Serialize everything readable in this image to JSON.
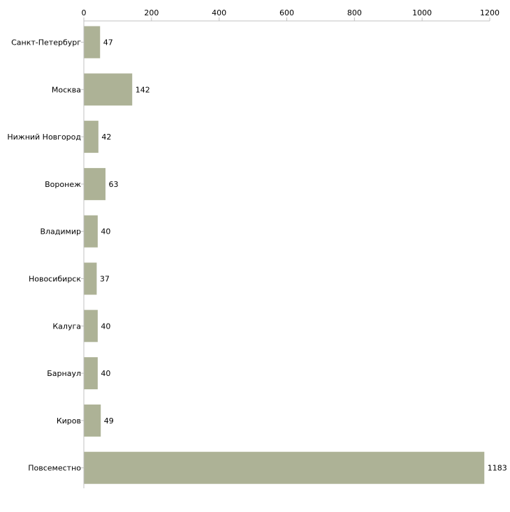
{
  "colors": {
    "bar": "#adb296",
    "axis": "#c0c0c0"
  },
  "chart_data": {
    "type": "bar",
    "orientation": "horizontal",
    "title": "",
    "xlabel": "",
    "ylabel": "",
    "xlim": [
      0,
      1200
    ],
    "x_ticks": [
      0,
      200,
      400,
      600,
      800,
      1000,
      1200
    ],
    "x_axis_position": "top",
    "grid": false,
    "categories": [
      "Санкт-Петербург",
      "Москва",
      "Нижний Новгород",
      "Воронеж",
      "Владимир",
      "Новосибирск",
      "Калуга",
      "Барнаул",
      "Киров",
      "Повсеместно"
    ],
    "values": [
      47,
      142,
      42,
      63,
      40,
      37,
      40,
      40,
      49,
      1183
    ]
  }
}
